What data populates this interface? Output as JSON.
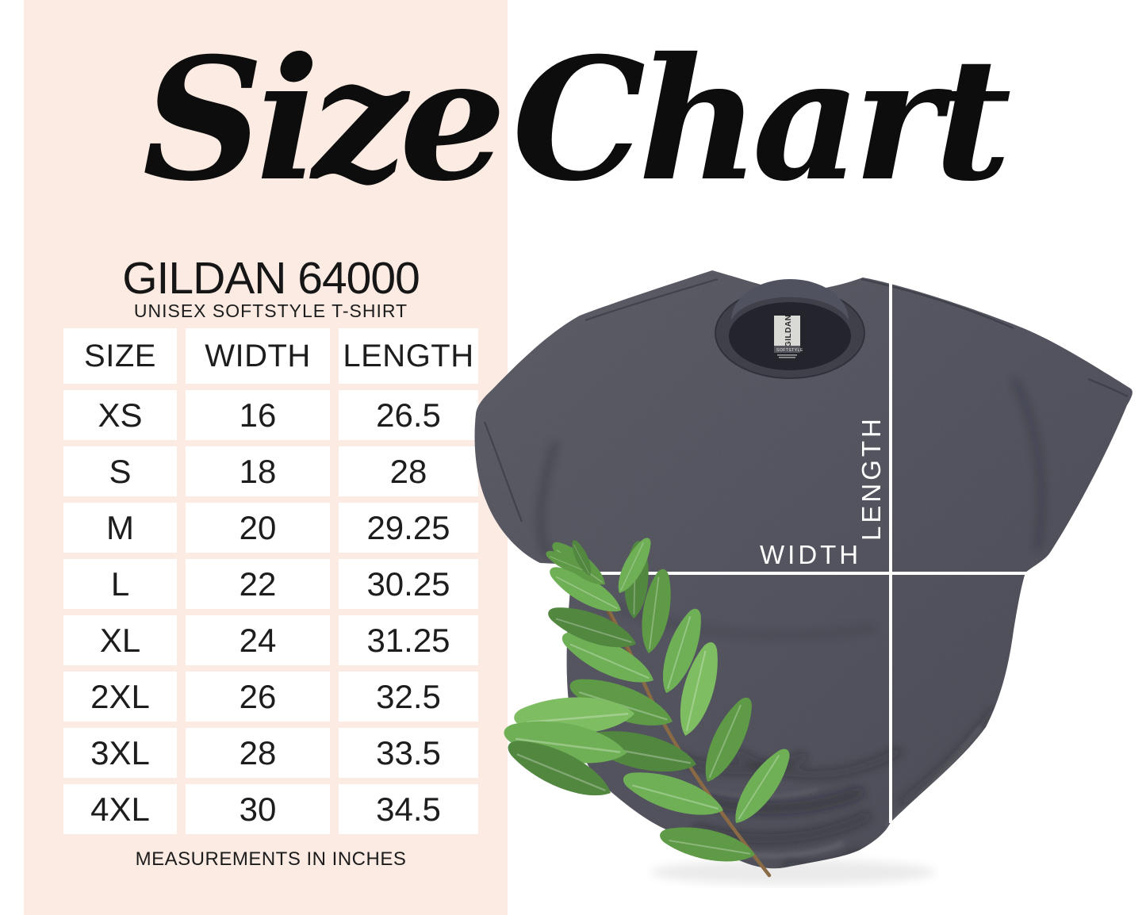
{
  "page": {
    "background": "#ffffff",
    "panel_color": "#fcebe3",
    "text_color": "#161616"
  },
  "title": {
    "text": "Size Chart"
  },
  "product": {
    "name": "GILDAN 64000",
    "subtitle": "UNISEX SOFTSTYLE T-SHIRT"
  },
  "size_table": {
    "headers": [
      "SIZE",
      "WIDTH",
      "LENGTH"
    ],
    "rows": [
      [
        "XS",
        "16",
        "26.5"
      ],
      [
        "S",
        "18",
        "28"
      ],
      [
        "M",
        "20",
        "29.25"
      ],
      [
        "L",
        "22",
        "30.25"
      ],
      [
        "XL",
        "24",
        "31.25"
      ],
      [
        "2XL",
        "26",
        "32.5"
      ],
      [
        "3XL",
        "28",
        "33.5"
      ],
      [
        "4XL",
        "30",
        "34.5"
      ]
    ]
  },
  "footnote": "MEASUREMENTS IN INCHES",
  "shirt": {
    "color": "#4d4e59",
    "measure_line_color": "#ffffff",
    "width_label": "WIDTH",
    "length_label": "LENGTH",
    "collar_tag": {
      "brand": "GILDAN",
      "style_line": "SOFTSTYLE"
    }
  },
  "chart_data": {
    "type": "table",
    "title": "Size Chart",
    "subtitle": "GILDAN 64000 UNISEX SOFTSTYLE T-SHIRT",
    "units": "inches",
    "categories": [
      "XS",
      "S",
      "M",
      "L",
      "XL",
      "2XL",
      "3XL",
      "4XL"
    ],
    "series": [
      {
        "name": "WIDTH",
        "values": [
          16,
          18,
          20,
          22,
          24,
          26,
          28,
          30
        ]
      },
      {
        "name": "LENGTH",
        "values": [
          26.5,
          28,
          29.25,
          30.25,
          31.25,
          32.5,
          33.5,
          34.5
        ]
      }
    ],
    "note": "MEASUREMENTS IN INCHES"
  }
}
